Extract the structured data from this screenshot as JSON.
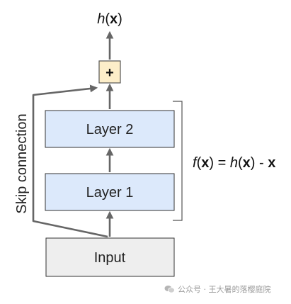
{
  "output_label": {
    "fn": "h",
    "arg": "x"
  },
  "plus_symbol": "+",
  "layers": {
    "layer2": "Layer 2",
    "layer1": "Layer 1",
    "input": "Input"
  },
  "skip_connection_label": "Skip connection",
  "equation": {
    "f": "f",
    "x1": "x",
    "eq": " = ",
    "h": "h",
    "x2": "x",
    "minus": " - ",
    "x3": "x"
  },
  "watermark": {
    "text": "公众号 · 王大暑的落樱庭院",
    "icon": "wechat-icon"
  },
  "colors": {
    "layer_fill": "#dce9fb",
    "layer_stroke": "#333333",
    "input_fill": "#eeeeee",
    "plus_fill": "#fdeec9",
    "arrow": "#666666"
  }
}
